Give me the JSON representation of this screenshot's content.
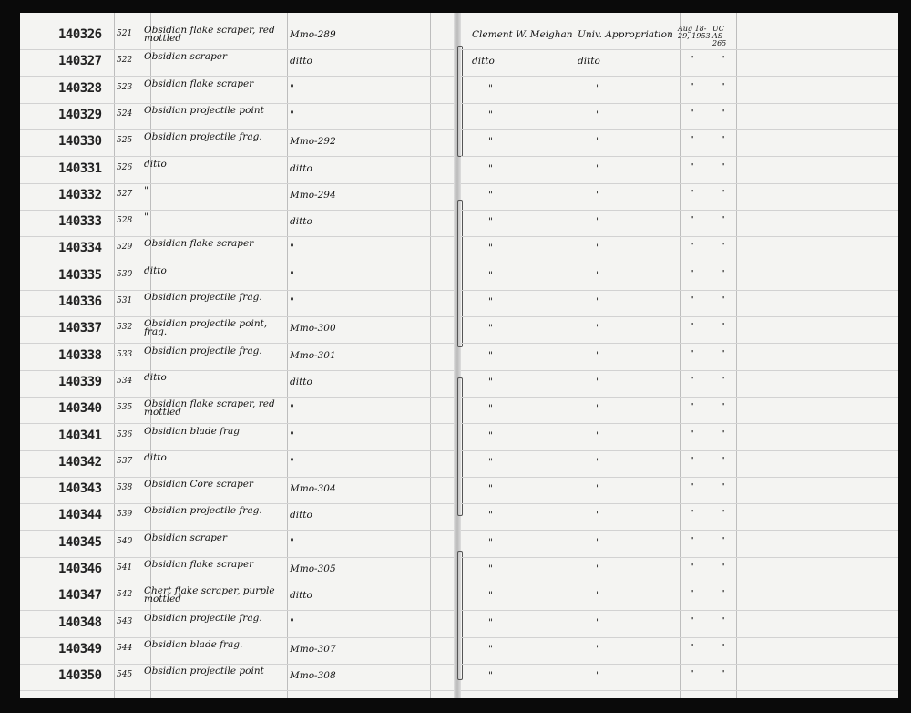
{
  "left_page": {
    "rows": [
      {
        "catalog": "140326",
        "field_no": "521",
        "description": "Obsidian flake scraper, red mottled",
        "accession": "Mmo-289"
      },
      {
        "catalog": "140327",
        "field_no": "522",
        "description": "Obsidian scraper",
        "accession": "ditto"
      },
      {
        "catalog": "140328",
        "field_no": "523",
        "description": "Obsidian flake scraper",
        "accession": "\""
      },
      {
        "catalog": "140329",
        "field_no": "524",
        "description": "Obsidian projectile point",
        "accession": "\""
      },
      {
        "catalog": "140330",
        "field_no": "525",
        "description": "Obsidian projectile frag.",
        "accession": "Mmo-292"
      },
      {
        "catalog": "140331",
        "field_no": "526",
        "description": "ditto",
        "accession": "ditto"
      },
      {
        "catalog": "140332",
        "field_no": "527",
        "description": "\"",
        "accession": "Mmo-294"
      },
      {
        "catalog": "140333",
        "field_no": "528",
        "description": "\"",
        "accession": "ditto"
      },
      {
        "catalog": "140334",
        "field_no": "529",
        "description": "Obsidian flake scraper",
        "accession": "\""
      },
      {
        "catalog": "140335",
        "field_no": "530",
        "description": "ditto",
        "accession": "\""
      },
      {
        "catalog": "140336",
        "field_no": "531",
        "description": "Obsidian projectile frag.",
        "accession": "\""
      },
      {
        "catalog": "140337",
        "field_no": "532",
        "description": "Obsidian projectile point, frag.",
        "accession": "Mmo-300"
      },
      {
        "catalog": "140338",
        "field_no": "533",
        "description": "Obsidian projectile frag.",
        "accession": "Mmo-301"
      },
      {
        "catalog": "140339",
        "field_no": "534",
        "description": "ditto",
        "accession": "ditto"
      },
      {
        "catalog": "140340",
        "field_no": "535",
        "description": "Obsidian flake scraper, red mottled",
        "accession": "\""
      },
      {
        "catalog": "140341",
        "field_no": "536",
        "description": "Obsidian blade frag",
        "accession": "\""
      },
      {
        "catalog": "140342",
        "field_no": "537",
        "description": "ditto",
        "accession": "\""
      },
      {
        "catalog": "140343",
        "field_no": "538",
        "description": "Obsidian Core scraper",
        "accession": "Mmo-304"
      },
      {
        "catalog": "140344",
        "field_no": "539",
        "description": "Obsidian projectile frag.",
        "accession": "ditto"
      },
      {
        "catalog": "140345",
        "field_no": "540",
        "description": "Obsidian scraper",
        "accession": "\""
      },
      {
        "catalog": "140346",
        "field_no": "541",
        "description": "Obsidian flake scraper",
        "accession": "Mmo-305"
      },
      {
        "catalog": "140347",
        "field_no": "542",
        "description": "Chert flake scraper, purple mottled",
        "accession": "ditto"
      },
      {
        "catalog": "140348",
        "field_no": "543",
        "description": "Obsidian projectile frag.",
        "accession": "\""
      },
      {
        "catalog": "140349",
        "field_no": "544",
        "description": "Obsidian blade frag.",
        "accession": "Mmo-307"
      },
      {
        "catalog": "140350",
        "field_no": "545",
        "description": "Obsidian projectile point",
        "accession": "Mmo-308"
      }
    ]
  },
  "right_page": {
    "rows": [
      {
        "collector": "Clement W. Meighan",
        "source": "Univ. Appropriation",
        "date": "Aug 18-29, 1953",
        "number": "UC AS 265"
      },
      {
        "collector": "ditto",
        "source": "ditto",
        "date": "\"",
        "number": "\""
      },
      {
        "collector": "\"",
        "source": "\"",
        "date": "\"",
        "number": "\""
      },
      {
        "collector": "\"",
        "source": "\"",
        "date": "\"",
        "number": "\""
      },
      {
        "collector": "\"",
        "source": "\"",
        "date": "\"",
        "number": "\""
      },
      {
        "collector": "\"",
        "source": "\"",
        "date": "\"",
        "number": "\""
      },
      {
        "collector": "\"",
        "source": "\"",
        "date": "\"",
        "number": "\""
      },
      {
        "collector": "\"",
        "source": "\"",
        "date": "\"",
        "number": "\""
      },
      {
        "collector": "\"",
        "source": "\"",
        "date": "\"",
        "number": "\""
      },
      {
        "collector": "\"",
        "source": "\"",
        "date": "\"",
        "number": "\""
      },
      {
        "collector": "\"",
        "source": "\"",
        "date": "\"",
        "number": "\""
      },
      {
        "collector": "\"",
        "source": "\"",
        "date": "\"",
        "number": "\""
      },
      {
        "collector": "\"",
        "source": "\"",
        "date": "\"",
        "number": "\""
      },
      {
        "collector": "\"",
        "source": "\"",
        "date": "\"",
        "number": "\""
      },
      {
        "collector": "\"",
        "source": "\"",
        "date": "\"",
        "number": "\""
      },
      {
        "collector": "\"",
        "source": "\"",
        "date": "\"",
        "number": "\""
      },
      {
        "collector": "\"",
        "source": "\"",
        "date": "\"",
        "number": "\""
      },
      {
        "collector": "\"",
        "source": "\"",
        "date": "\"",
        "number": "\""
      },
      {
        "collector": "\"",
        "source": "\"",
        "date": "\"",
        "number": "\""
      },
      {
        "collector": "\"",
        "source": "\"",
        "date": "\"",
        "number": "\""
      },
      {
        "collector": "\"",
        "source": "\"",
        "date": "\"",
        "number": "\""
      },
      {
        "collector": "\"",
        "source": "\"",
        "date": "\"",
        "number": "\""
      },
      {
        "collector": "\"",
        "source": "\"",
        "date": "\"",
        "number": "\""
      },
      {
        "collector": "\"",
        "source": "\"",
        "date": "\"",
        "number": "\""
      },
      {
        "collector": "\"",
        "source": "\"",
        "date": "\"",
        "number": "\""
      }
    ]
  }
}
